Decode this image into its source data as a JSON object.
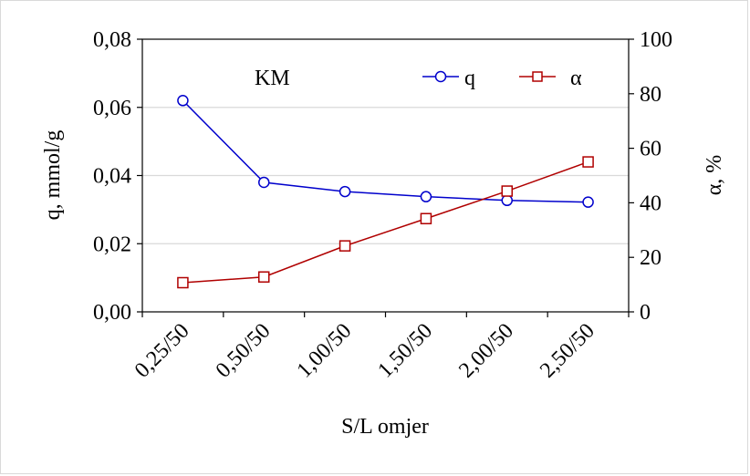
{
  "chart_data": {
    "type": "line",
    "annotation": "KM",
    "categories": [
      "0,25/50",
      "0,50/50",
      "1,00/50",
      "1,50/50",
      "2,00/50",
      "2,50/50"
    ],
    "xlabel": "S/L omjer",
    "ylabel": "q, mmol/g",
    "y2label": "α, %",
    "ylim": [
      0,
      0.08
    ],
    "y_ticks": [
      "0,00",
      "0,02",
      "0,04",
      "0,06",
      "0,08"
    ],
    "y2lim": [
      0,
      100
    ],
    "y2_ticks": [
      "0",
      "20",
      "40",
      "60",
      "80",
      "100"
    ],
    "grid": true,
    "legend_position": "top-right",
    "series": [
      {
        "name": "q",
        "axis": "left",
        "marker": "circle",
        "color": "#0000cc",
        "values": [
          0.062,
          0.038,
          0.0353,
          0.0338,
          0.0327,
          0.0322
        ]
      },
      {
        "name": "α",
        "axis": "right",
        "marker": "square",
        "color": "#b00000",
        "values": [
          10.7,
          12.8,
          24.2,
          34.2,
          44.3,
          55.0
        ]
      }
    ]
  }
}
